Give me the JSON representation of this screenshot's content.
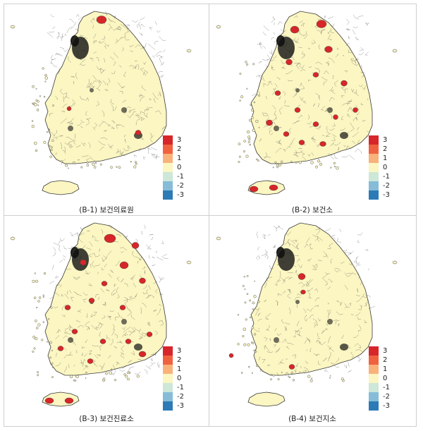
{
  "legend": {
    "levels": [
      {
        "label": "3",
        "color": "#d7262a"
      },
      {
        "label": "2",
        "color": "#f0623f"
      },
      {
        "label": "1",
        "color": "#f9b27a"
      },
      {
        "label": "0",
        "color": "#fbf6c2"
      },
      {
        "label": "-1",
        "color": "#cde7d8"
      },
      {
        "label": "-2",
        "color": "#86bcd8"
      },
      {
        "label": "-3",
        "color": "#2c7bb6"
      }
    ]
  },
  "panels": [
    {
      "caption": "(B-1) 보건의료원"
    },
    {
      "caption": "(B-2) 보건소"
    },
    {
      "caption": "(B-3) 보건진료소"
    },
    {
      "caption": "(B-4) 보건지소"
    }
  ],
  "colors": {
    "land": "#fbf6c2",
    "border": "#3a3a3a",
    "dense": "#111111",
    "hot": "#d7262a"
  }
}
